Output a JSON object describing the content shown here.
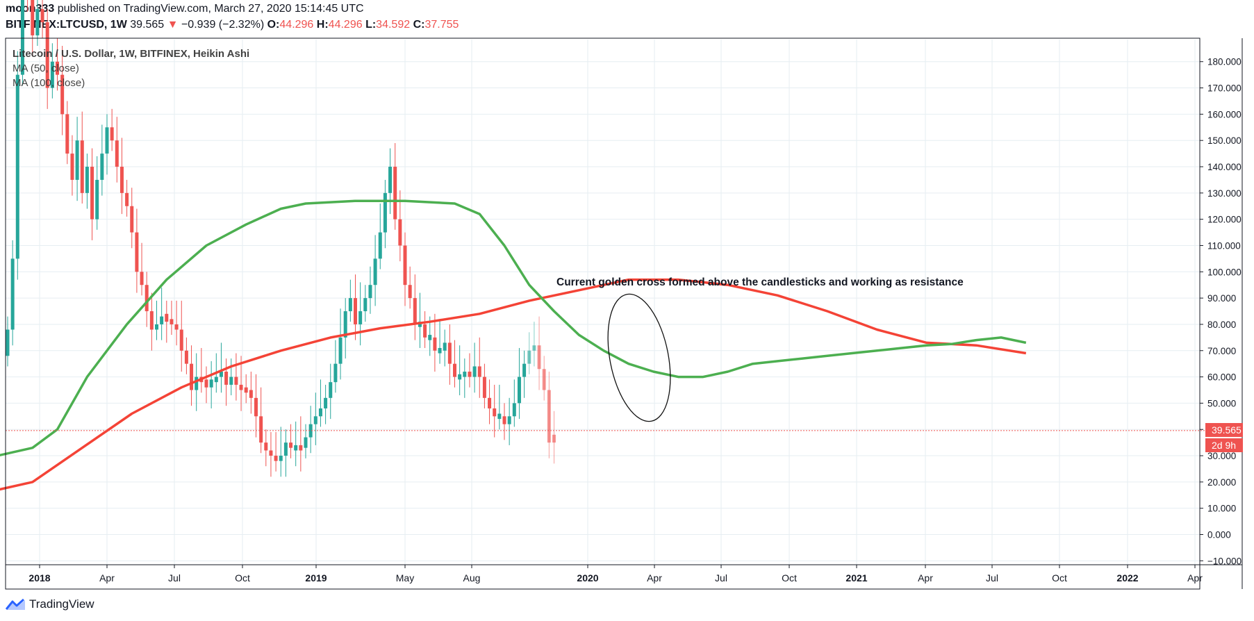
{
  "header": {
    "publisher": "moon333",
    "published_text": "published on TradingView.com, March 27, 2020 15:14:45 UTC",
    "symbol": "BITFINEX:LTCUSD, 1W",
    "last": "39.565",
    "change": "−0.939 (−2.32%)",
    "o_label": "O:",
    "o_value": "44.296",
    "h_label": "H:",
    "h_value": "44.296",
    "l_label": "L:",
    "l_value": "34.592",
    "c_label": "C:",
    "c_value": "37.755"
  },
  "legend": {
    "title": "Litecoin / U.S. Dollar, 1W, BITFINEX, Heikin Ashi",
    "ma50": "MA (50, close)",
    "ma100": "MA (100, close)"
  },
  "annotation": "Current golden cross formed above the candlesticks and working as resistance",
  "price_label": "39.565",
  "countdown_label": "2d 9h",
  "branding": "TradingView",
  "colors": {
    "up": "#26a69a",
    "down": "#ef5350",
    "ma50": "#4caf50",
    "ma100": "#f44336",
    "grid": "#e6eef2"
  },
  "chart_data": {
    "type": "candlestick",
    "title": "Litecoin / U.S. Dollar, 1W, BITFINEX, Heikin Ashi",
    "y_ticks": [
      "180.000",
      "170.000",
      "160.000",
      "150.000",
      "140.000",
      "130.000",
      "120.000",
      "110.000",
      "100.000",
      "90.000",
      "80.000",
      "70.000",
      "60.000",
      "50.000",
      "40.000",
      "30.000",
      "20.000",
      "10.000",
      "0.000",
      "−10.000"
    ],
    "x_ticks": [
      {
        "label": "2018",
        "bold": true,
        "date": "2018-01-01"
      },
      {
        "label": "Apr",
        "bold": false,
        "date": "2018-04-01"
      },
      {
        "label": "Jul",
        "bold": false,
        "date": "2018-07-01"
      },
      {
        "label": "Oct",
        "bold": false,
        "date": "2018-10-01"
      },
      {
        "label": "2019",
        "bold": true,
        "date": "2019-01-01"
      },
      {
        "label": "May",
        "bold": false,
        "date": "2019-05-01"
      },
      {
        "label": "Aug",
        "bold": false,
        "date": "2019-08-01"
      },
      {
        "label": "2020",
        "bold": true,
        "date": "2020-01-01"
      },
      {
        "label": "Apr",
        "bold": false,
        "date": "2020-04-01"
      },
      {
        "label": "Jul",
        "bold": false,
        "date": "2020-07-01"
      },
      {
        "label": "Oct",
        "bold": false,
        "date": "2020-10-01"
      },
      {
        "label": "2021",
        "bold": true,
        "date": "2021-01-01"
      },
      {
        "label": "Apr",
        "bold": false,
        "date": "2021-04-01"
      },
      {
        "label": "Jul",
        "bold": false,
        "date": "2021-07-01"
      },
      {
        "label": "Oct",
        "bold": false,
        "date": "2021-10-01"
      },
      {
        "label": "2022",
        "bold": true,
        "date": "2022-01-01"
      },
      {
        "label": "Apr",
        "bold": false,
        "date": "2022-04-01"
      }
    ],
    "ylim": [
      -12,
      190
    ],
    "current_price": 39.565,
    "candle_closes": [
      78,
      105,
      175,
      205,
      210,
      190,
      200,
      195,
      170,
      180,
      175,
      160,
      145,
      135,
      150,
      130,
      140,
      120,
      135,
      145,
      155,
      150,
      140,
      130,
      125,
      115,
      100,
      95,
      85,
      78,
      80,
      83,
      82,
      80,
      78,
      70,
      65,
      55,
      60,
      58,
      57,
      58,
      60,
      62,
      57,
      60,
      57,
      55,
      55,
      52,
      45,
      35,
      32,
      30,
      28,
      30,
      35,
      33,
      33,
      33,
      37,
      42,
      45,
      48,
      52,
      58,
      65,
      75,
      85,
      90,
      80,
      85,
      90,
      95,
      105,
      115,
      130,
      140,
      120,
      110,
      95,
      90,
      80,
      80,
      75,
      75,
      70,
      70,
      73,
      65,
      60,
      60,
      62,
      60,
      64,
      60,
      52,
      48,
      45,
      45,
      42,
      45,
      50,
      60,
      65,
      70,
      72,
      63,
      55,
      35,
      38
    ],
    "candle_up": [
      true,
      true,
      true,
      true,
      false,
      false,
      true,
      false,
      false,
      true,
      false,
      false,
      false,
      false,
      true,
      false,
      true,
      false,
      true,
      true,
      true,
      false,
      false,
      false,
      false,
      false,
      false,
      false,
      false,
      false,
      true,
      true,
      false,
      false,
      false,
      false,
      false,
      false,
      true,
      false,
      false,
      true,
      true,
      true,
      false,
      true,
      false,
      false,
      false,
      false,
      false,
      false,
      false,
      false,
      false,
      true,
      true,
      false,
      true,
      false,
      true,
      true,
      true,
      true,
      true,
      true,
      true,
      true,
      true,
      true,
      false,
      true,
      true,
      true,
      true,
      true,
      true,
      true,
      false,
      false,
      false,
      false,
      false,
      true,
      false,
      true,
      false,
      true,
      true,
      false,
      false,
      true,
      true,
      false,
      true,
      false,
      false,
      false,
      false,
      true,
      false,
      true,
      true,
      true,
      true,
      true,
      true,
      false,
      false,
      false,
      false
    ],
    "ma50": [
      [
        -2,
        30
      ],
      [
        5,
        33
      ],
      [
        10,
        40
      ],
      [
        16,
        60
      ],
      [
        24,
        80
      ],
      [
        32,
        97
      ],
      [
        40,
        110
      ],
      [
        48,
        118
      ],
      [
        55,
        124
      ],
      [
        60,
        126
      ],
      [
        70,
        127
      ],
      [
        80,
        127
      ],
      [
        90,
        126
      ],
      [
        95,
        122
      ],
      [
        100,
        110
      ],
      [
        105,
        95
      ],
      [
        110,
        85
      ],
      [
        115,
        76
      ],
      [
        120,
        70
      ],
      [
        125,
        65
      ],
      [
        130,
        62
      ],
      [
        135,
        60
      ],
      [
        140,
        60
      ],
      [
        145,
        62
      ],
      [
        150,
        65
      ],
      [
        155,
        66
      ],
      [
        160,
        67
      ],
      [
        165,
        68
      ],
      [
        170,
        69
      ],
      [
        175,
        70
      ],
      [
        180,
        71
      ],
      [
        185,
        72
      ],
      [
        190,
        72.5
      ],
      [
        195,
        74
      ],
      [
        200,
        75
      ],
      [
        205,
        73
      ]
    ],
    "ma100": [
      [
        -2,
        17
      ],
      [
        5,
        20
      ],
      [
        15,
        33
      ],
      [
        25,
        46
      ],
      [
        35,
        56
      ],
      [
        45,
        64
      ],
      [
        55,
        70
      ],
      [
        65,
        75
      ],
      [
        75,
        78.5
      ],
      [
        85,
        81
      ],
      [
        95,
        84
      ],
      [
        105,
        89
      ],
      [
        115,
        93
      ],
      [
        125,
        97
      ],
      [
        135,
        97
      ],
      [
        145,
        95
      ],
      [
        155,
        91
      ],
      [
        165,
        85
      ],
      [
        175,
        78
      ],
      [
        185,
        73
      ],
      [
        195,
        72
      ],
      [
        205,
        69
      ]
    ]
  }
}
